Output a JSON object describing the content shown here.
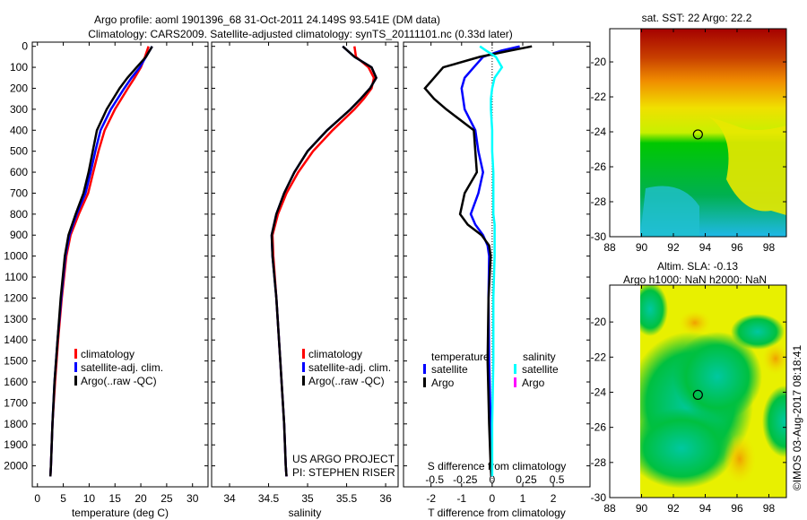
{
  "title_line1": "Argo profile: aoml 1901396_68 31-Oct-2011 24.149S 93.541E (DM data)",
  "title_line2": "Climatology: CARS2009. Satellite-adjusted climatology: synTS_20111101.nc (0.33d later)",
  "colors": {
    "climatology": "#ff0000",
    "satellite": "#0000ff",
    "argo": "#000000",
    "sal_satellite": "#00ffff",
    "sal_argo": "#ff00ff"
  },
  "chart_data": [
    {
      "type": "line",
      "xlabel": "temperature (deg C)",
      "ylabel": "depth",
      "xlim": [
        -1,
        33
      ],
      "ylim": [
        2100,
        -20
      ],
      "xticks": [
        0,
        5,
        10,
        15,
        20,
        25,
        30
      ],
      "yticks": [
        0,
        100,
        200,
        300,
        400,
        500,
        600,
        700,
        800,
        900,
        1000,
        1100,
        1200,
        1300,
        1400,
        1500,
        1600,
        1700,
        1800,
        1900,
        2000
      ],
      "legend": [
        "climatology",
        "satellite-adj. clim.",
        "Argo(..raw -QC)"
      ],
      "depth": [
        0,
        50,
        100,
        150,
        200,
        300,
        400,
        500,
        600,
        700,
        800,
        850,
        900,
        1000,
        1200,
        1400,
        1600,
        1800,
        2000,
        2050
      ],
      "series": [
        {
          "name": "climatology",
          "color": "climatology",
          "values": [
            21.5,
            20.8,
            20.0,
            18.8,
            17.5,
            15.0,
            13.0,
            11.8,
            10.8,
            9.8,
            8.0,
            7.2,
            6.4,
            5.6,
            4.7,
            4.0,
            3.4,
            2.9,
            2.6,
            2.5
          ]
        },
        {
          "name": "satellite-adj. clim.",
          "color": "satellite",
          "values": [
            22.2,
            21.0,
            19.8,
            18.2,
            16.8,
            14.2,
            12.2,
            11.2,
            10.3,
            9.3,
            7.6,
            6.9,
            6.2,
            5.4,
            4.6,
            3.9,
            3.3,
            2.9,
            2.6,
            2.5
          ]
        },
        {
          "name": "Argo(..raw -QC)",
          "color": "argo",
          "values": [
            22.2,
            21.0,
            19.2,
            17.4,
            15.9,
            13.4,
            11.5,
            10.7,
            9.9,
            8.9,
            7.4,
            6.7,
            6.0,
            5.3,
            4.5,
            3.9,
            3.3,
            2.9,
            2.6,
            2.5
          ]
        }
      ]
    },
    {
      "type": "line",
      "xlabel": "salinity",
      "xlim": [
        33.77,
        36.16
      ],
      "ylim": [
        2100,
        -20
      ],
      "xticks": [
        34,
        34.5,
        35,
        35.5,
        36
      ],
      "legend": [
        "climatology",
        "satellite-adj. clim.",
        "Argo(..raw -QC)"
      ],
      "annotation": [
        "US ARGO PROJECT",
        "PI: STEPHEN RISER"
      ],
      "depth": [
        0,
        50,
        100,
        150,
        200,
        250,
        300,
        400,
        500,
        600,
        700,
        800,
        900,
        1000,
        1200,
        1500,
        1800,
        2000,
        2050
      ],
      "series": [
        {
          "name": "climatology",
          "color": "climatology",
          "values": [
            35.6,
            35.62,
            35.78,
            35.85,
            35.82,
            35.72,
            35.6,
            35.32,
            35.07,
            34.88,
            34.73,
            34.62,
            34.55,
            34.56,
            34.6,
            34.65,
            34.7,
            34.72,
            34.73
          ]
        },
        {
          "name": "satellite-adj. clim.",
          "color": "satellite",
          "values": [
            35.45,
            35.6,
            35.82,
            35.88,
            35.8,
            35.68,
            35.55,
            35.25,
            35.0,
            34.83,
            34.7,
            34.6,
            34.54,
            34.55,
            34.6,
            34.65,
            34.7,
            34.72,
            34.73
          ]
        },
        {
          "name": "Argo(..raw -QC)",
          "color": "argo",
          "values": [
            35.45,
            35.6,
            35.82,
            35.88,
            35.8,
            35.68,
            35.55,
            35.25,
            35.0,
            34.83,
            34.7,
            34.6,
            34.54,
            34.55,
            34.6,
            34.65,
            34.7,
            34.72,
            34.73
          ]
        }
      ]
    },
    {
      "type": "line",
      "xlabel": "T difference from climatology",
      "x2label": "S difference from climatology",
      "xlim": [
        -2.9,
        3.2
      ],
      "ylim": [
        2100,
        -20
      ],
      "xticks": [
        -2,
        -1,
        0,
        1,
        2
      ],
      "x2ticks": [
        "-0.5",
        "-0.25",
        "0",
        "0.25",
        "0.5"
      ],
      "x2tick_values_T": [
        -2,
        -1,
        0,
        1,
        2
      ],
      "legend_headers": [
        "temperature",
        "salinity"
      ],
      "legend": [
        "satellite",
        "Argo",
        "satellite",
        "Argo"
      ],
      "depth": [
        0,
        20,
        50,
        100,
        150,
        200,
        250,
        300,
        400,
        500,
        600,
        700,
        800,
        850,
        900,
        950,
        1000,
        1200,
        1500,
        1800,
        2000,
        2050
      ],
      "series": [
        {
          "name": "temperature satellite",
          "color": "satellite",
          "values": [
            0.9,
            0.3,
            -0.3,
            -0.6,
            -0.9,
            -1.0,
            -0.95,
            -0.9,
            -0.55,
            -0.45,
            -0.3,
            -0.45,
            -0.7,
            -0.55,
            -0.3,
            -0.15,
            -0.1,
            -0.12,
            -0.1,
            -0.05,
            -0.03,
            -0.02
          ]
        },
        {
          "name": "temperature Argo",
          "color": "argo",
          "values": [
            1.3,
            0.6,
            -0.4,
            -1.6,
            -1.9,
            -2.2,
            -1.9,
            -1.5,
            -0.6,
            -0.55,
            -0.5,
            -0.9,
            -1.05,
            -0.8,
            -0.35,
            -0.1,
            -0.05,
            -0.12,
            -0.15,
            -0.1,
            -0.05,
            -0.03
          ]
        },
        {
          "name": "salinity satellite",
          "color": "sal_satellite",
          "values": [
            -0.1,
            -0.05,
            0.03,
            0.08,
            0.02,
            0.0,
            -0.01,
            -0.01,
            0.0,
            0.0,
            0.01,
            0.01,
            0.01,
            0.02,
            0.02,
            0.02,
            0.02,
            0.01,
            0.01,
            0.0,
            0.0,
            0.0
          ],
          "scale_to_T": 4
        }
      ]
    },
    {
      "type": "heatmap",
      "title": "sat. SST: 22 Argo: 22.2",
      "xlim": [
        88,
        99.1
      ],
      "ylim": [
        -18.1,
        -30
      ],
      "xticks": [
        88,
        90,
        92,
        94,
        96,
        98
      ],
      "yticks": [
        -20,
        -22,
        -24,
        -26,
        -28,
        -30
      ],
      "marker": {
        "lon": 93.541,
        "lat": -24.149
      }
    },
    {
      "type": "heatmap",
      "title": "Altim. SLA: -0.13",
      "subtitle": "Argo h1000: NaN h2000: NaN",
      "xlim": [
        88,
        99.1
      ],
      "ylim": [
        -17.9,
        -30
      ],
      "xticks": [
        88,
        90,
        92,
        94,
        96,
        98
      ],
      "yticks": [
        -20,
        -22,
        -24,
        -26,
        -28,
        -30
      ],
      "marker": {
        "lon": 93.541,
        "lat": -24.149
      }
    }
  ],
  "credit": "©IMOS 03-Aug-2017 08:18:41"
}
